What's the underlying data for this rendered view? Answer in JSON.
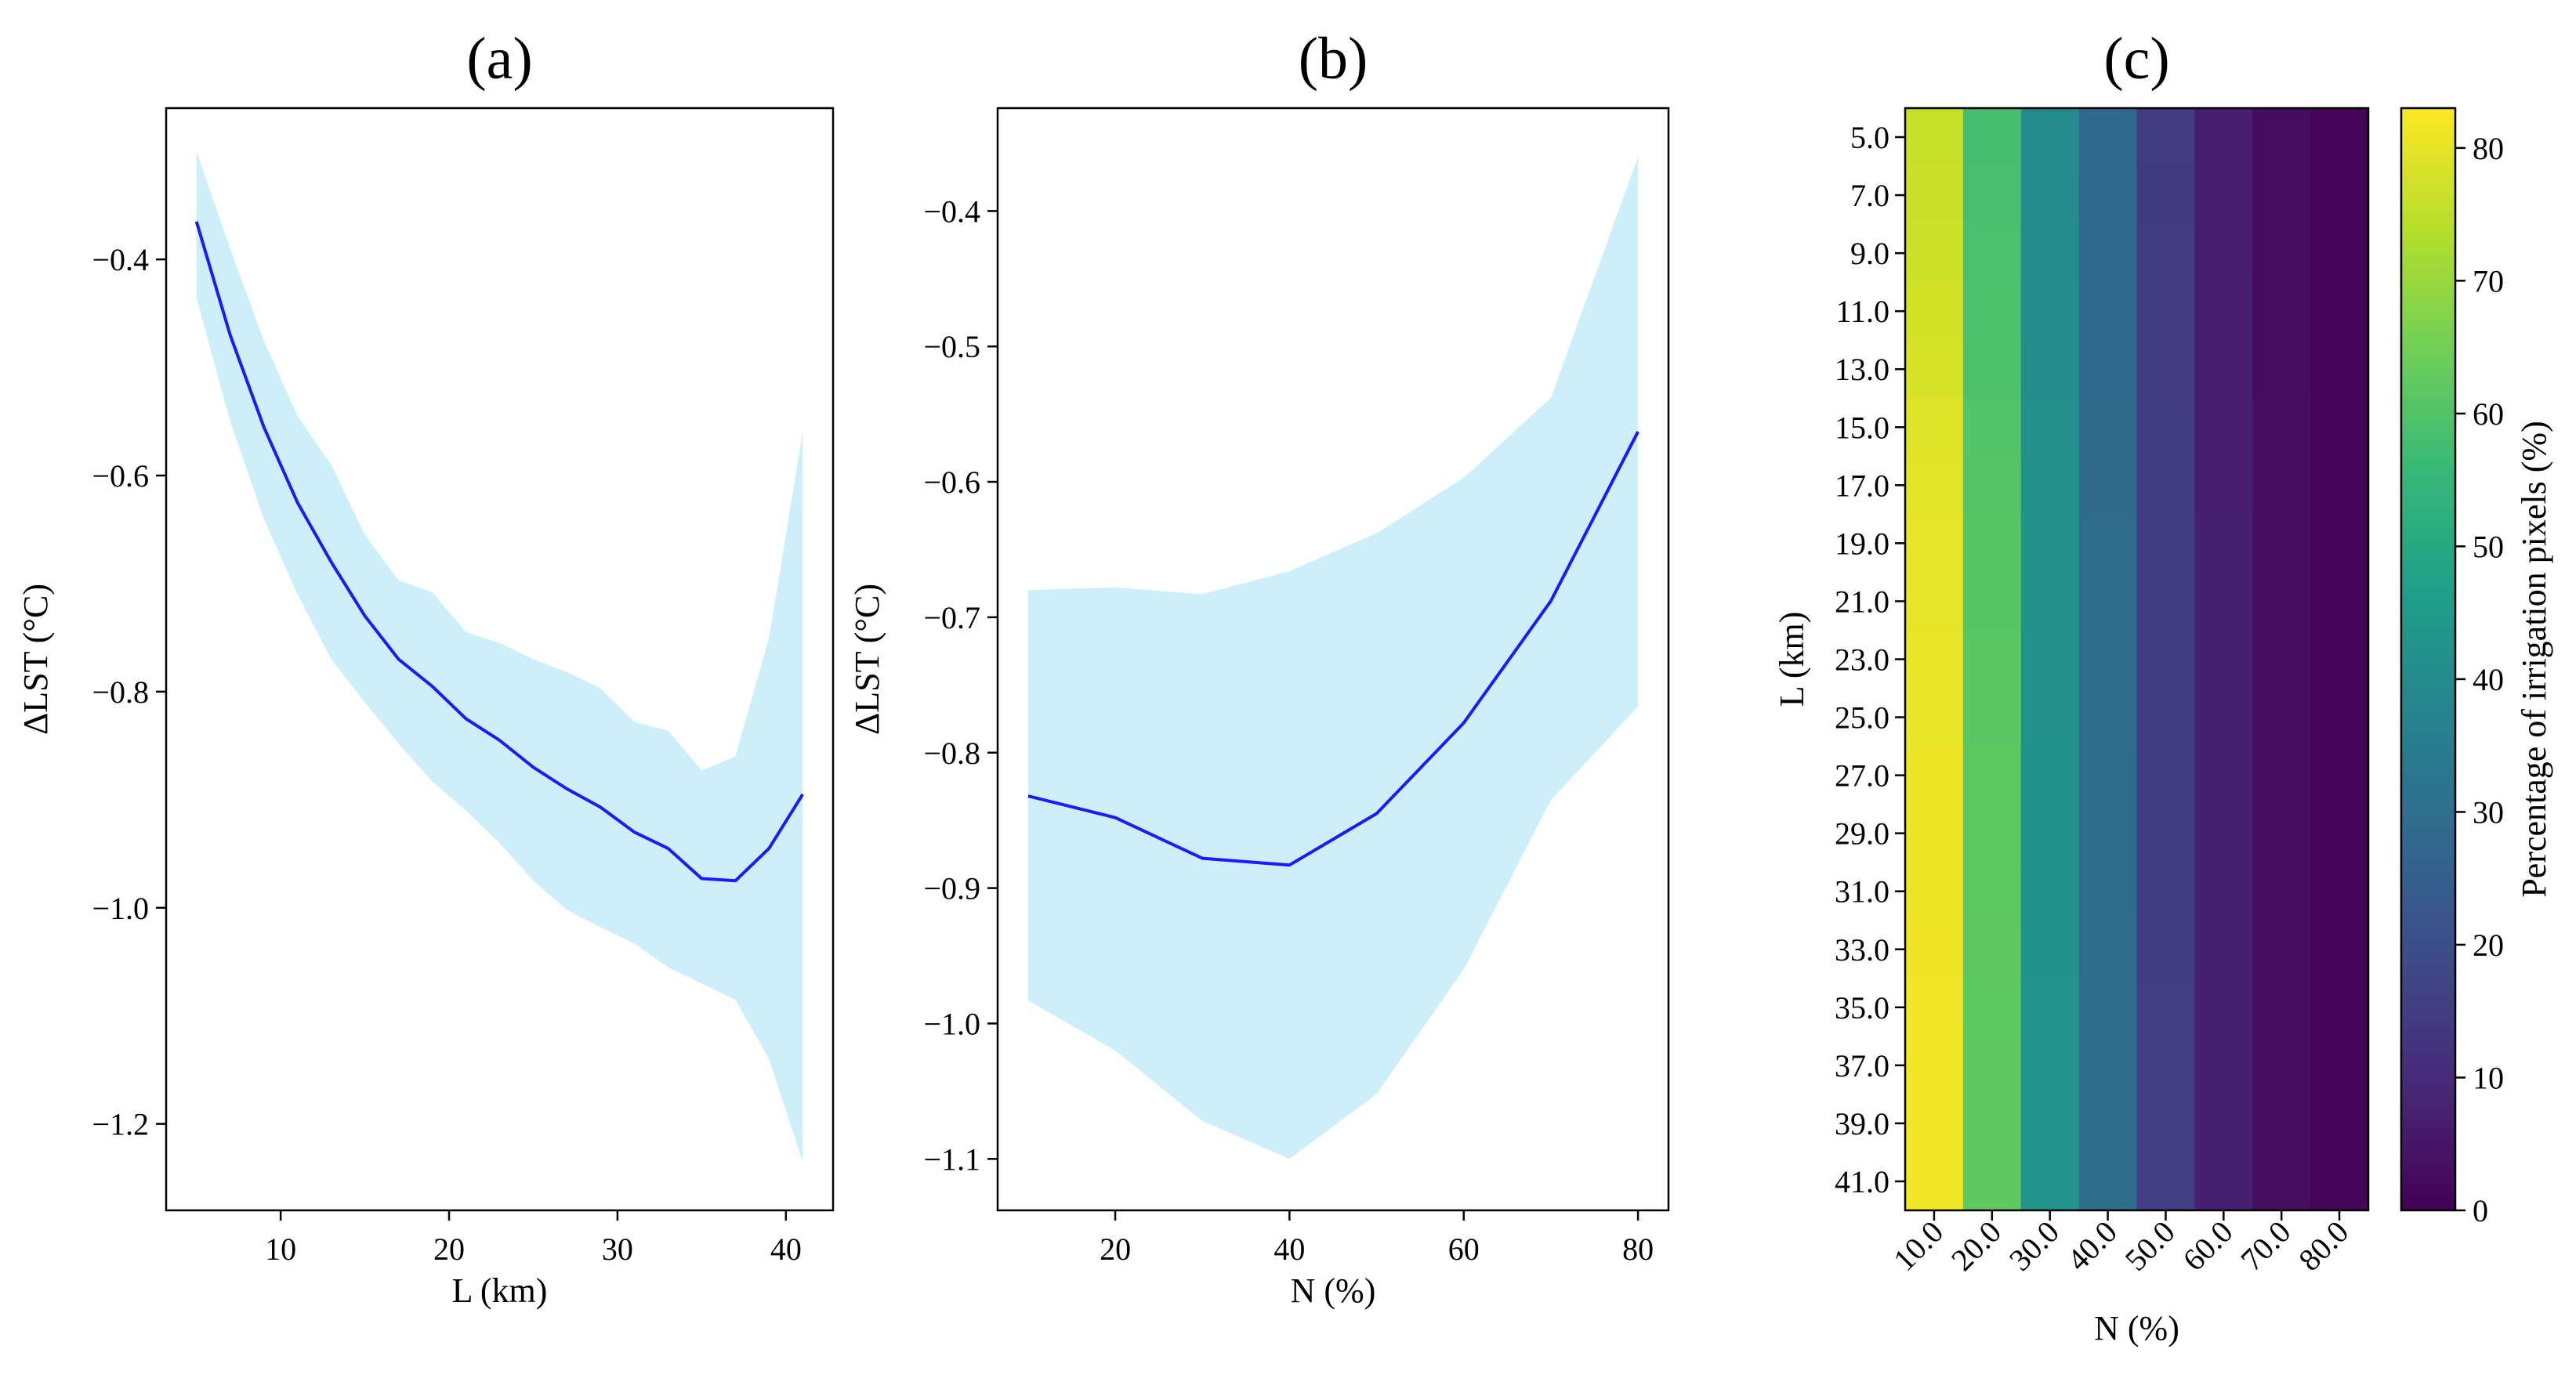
{
  "chart_data": [
    {
      "type": "line",
      "title": "(a)",
      "xlabel": "L (km)",
      "ylabel": "ΔLST (°C)",
      "xlim": [
        3.2,
        42.8
      ],
      "ylim": [
        -1.28,
        -0.26
      ],
      "xticks": [
        10,
        20,
        30,
        40
      ],
      "yticks": [
        -0.4,
        -0.6,
        -0.8,
        -1.0,
        -1.2
      ],
      "ytick_labels": [
        "−0.4",
        "−0.6",
        "−0.8",
        "−1.0",
        "−1.2"
      ],
      "line_color": "#1a1aff",
      "band_color": "#cdeffa",
      "x": [
        5,
        7,
        9,
        11,
        13,
        15,
        17,
        19,
        21,
        23,
        25,
        27,
        29,
        31,
        33,
        35,
        37,
        39,
        41
      ],
      "mean": [
        -0.365,
        -0.47,
        -0.555,
        -0.625,
        -0.68,
        -0.73,
        -0.77,
        -0.795,
        -0.825,
        -0.845,
        -0.87,
        -0.89,
        -0.907,
        -0.93,
        -0.945,
        -0.973,
        -0.975,
        -0.945,
        -0.895
      ],
      "upper": [
        -0.3,
        -0.39,
        -0.475,
        -0.545,
        -0.59,
        -0.655,
        -0.697,
        -0.708,
        -0.745,
        -0.755,
        -0.77,
        -0.782,
        -0.797,
        -0.828,
        -0.836,
        -0.873,
        -0.86,
        -0.75,
        -0.56
      ],
      "lower": [
        -0.435,
        -0.55,
        -0.64,
        -0.71,
        -0.77,
        -0.81,
        -0.848,
        -0.883,
        -0.91,
        -0.94,
        -0.975,
        -1.002,
        -1.018,
        -1.033,
        -1.055,
        -1.07,
        -1.085,
        -1.14,
        -1.235
      ]
    },
    {
      "type": "line",
      "title": "(b)",
      "xlabel": "N (%)",
      "ylabel": "ΔLST (°C)",
      "xlim": [
        6.5,
        83.5
      ],
      "ylim": [
        -1.138,
        -0.324
      ],
      "xticks": [
        20,
        40,
        60,
        80
      ],
      "yticks": [
        -0.4,
        -0.5,
        -0.6,
        -0.7,
        -0.8,
        -0.9,
        -1.0,
        -1.1
      ],
      "ytick_labels": [
        "−0.4",
        "−0.5",
        "−0.6",
        "−0.7",
        "−0.8",
        "−0.9",
        "−1.0",
        "−1.1"
      ],
      "line_color": "#1a1aff",
      "band_color": "#cdeffa",
      "x": [
        10,
        20,
        30,
        40,
        50,
        60,
        70,
        80
      ],
      "mean": [
        -0.832,
        -0.848,
        -0.878,
        -0.883,
        -0.845,
        -0.778,
        -0.688,
        -0.563
      ],
      "upper": [
        -0.68,
        -0.678,
        -0.683,
        -0.666,
        -0.638,
        -0.597,
        -0.538,
        -0.36
      ],
      "lower": [
        -0.983,
        -1.02,
        -1.072,
        -1.1,
        -1.052,
        -0.96,
        -0.835,
        -0.766
      ]
    },
    {
      "type": "heatmap",
      "title": "(c)",
      "xlabel": "N (%)",
      "ylabel": "L (km)",
      "x_labels": [
        "10.0",
        "20.0",
        "30.0",
        "40.0",
        "50.0",
        "60.0",
        "70.0",
        "80.0"
      ],
      "y_labels": [
        "5.0",
        "7.0",
        "9.0",
        "11.0",
        "13.0",
        "15.0",
        "17.0",
        "19.0",
        "21.0",
        "23.0",
        "25.0",
        "27.0",
        "29.0",
        "31.0",
        "33.0",
        "35.0",
        "37.0",
        "39.0",
        "41.0"
      ],
      "column_values": [
        80,
        61,
        42,
        29,
        15,
        7,
        3,
        1
      ],
      "row_offsets": [
        -4,
        -3.5,
        -3,
        -2.5,
        -2,
        -1,
        -0.5,
        0,
        0,
        0.5,
        0.5,
        1,
        1,
        1,
        1.2,
        1.3,
        1.5,
        1.5,
        1.5
      ],
      "colorbar": {
        "label": "Percentage of irrigation pixels (%)",
        "ticks": [
          0,
          10,
          20,
          30,
          40,
          50,
          60,
          70,
          80
        ],
        "min": 0,
        "max": 83,
        "colormap": "viridis"
      }
    }
  ]
}
